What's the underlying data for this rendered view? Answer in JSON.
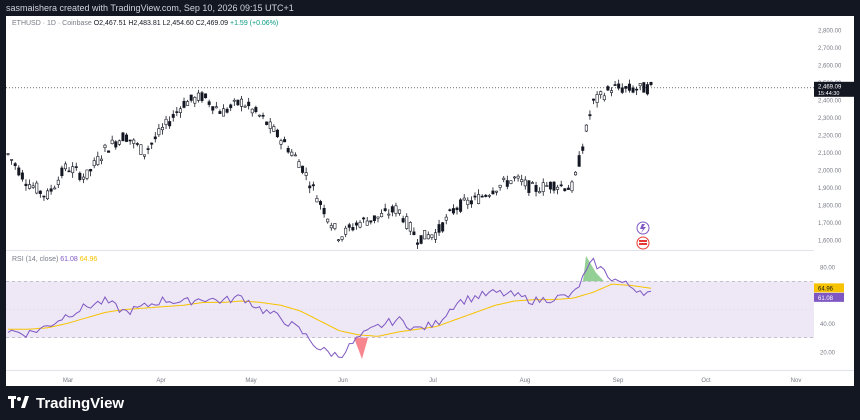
{
  "header": {
    "credit": "sasmaishera created with TradingView.com, Sep 10, 2026 09:15 UTC+1"
  },
  "legend": {
    "symbol": "ETHUSD · 1D · Coinbase",
    "open": "O2,467.51",
    "high": "H2,483.81",
    "low": "L2,454.60",
    "close": "C2,469.09",
    "change": "+1.59 (+0.06%)"
  },
  "rsi_legend": {
    "label": "RSI (14, close)",
    "rsi": "61.08",
    "ma": "64.96"
  },
  "last_price": {
    "value": "2,469.09",
    "countdown": "15:44:30"
  },
  "rsi_tags": {
    "ma": "64.96",
    "rsi": "61.08"
  },
  "footer": {
    "brand": "TradingView"
  },
  "colors": {
    "candle_up": "#131722",
    "candle_down": "#131722",
    "rsi_line": "#7e57c2",
    "rsi_ma": "#f7c300",
    "rsi_band": "#ede7f6"
  },
  "chart_data": [
    {
      "type": "candlestick",
      "title": "ETHUSD · 1D · Coinbase",
      "x_ticks": [
        "Mar",
        "Apr",
        "May",
        "Jun",
        "Jul",
        "Aug",
        "Sep",
        "Oct",
        "Nov"
      ],
      "y_ticks": [
        "1,600.00",
        "1,700.00",
        "1,800.00",
        "1,900.00",
        "2,000.00",
        "2,100.00",
        "2,200.00",
        "2,300.00",
        "2,400.00",
        "2,500.00",
        "2,600.00",
        "2,700.00",
        "2,800.00"
      ],
      "ylim": [
        1550,
        2850
      ],
      "series_points": [
        [
          "Feb 20",
          2090
        ],
        [
          "Feb 27",
          1930
        ],
        [
          "Mar 5",
          1850
        ],
        [
          "Mar 12",
          2020
        ],
        [
          "Mar 19",
          1960
        ],
        [
          "Mar 26",
          2120
        ],
        [
          "Apr 2",
          2200
        ],
        [
          "Apr 9",
          2100
        ],
        [
          "Apr 16",
          2240
        ],
        [
          "Apr 23",
          2380
        ],
        [
          "Apr 30",
          2420
        ],
        [
          "May 7",
          2330
        ],
        [
          "May 14",
          2390
        ],
        [
          "May 21",
          2300
        ],
        [
          "May 28",
          2180
        ],
        [
          "Jun 1",
          2040
        ],
        [
          "Jun 4",
          1820
        ],
        [
          "Jun 8",
          1620
        ],
        [
          "Jun 12",
          1700
        ],
        [
          "Jun 18",
          1730
        ],
        [
          "Jun 25",
          1780
        ],
        [
          "Jul 1",
          1610
        ],
        [
          "Jul 5",
          1640
        ],
        [
          "Jul 12",
          1790
        ],
        [
          "Jul 19",
          1830
        ],
        [
          "Jul 26",
          1900
        ],
        [
          "Aug 2",
          1950
        ],
        [
          "Aug 9",
          1890
        ],
        [
          "Aug 16",
          1920
        ],
        [
          "Aug 22",
          1900
        ],
        [
          "Aug 25",
          2380
        ],
        [
          "Sep 1",
          2470
        ],
        [
          "Sep 6",
          2460
        ],
        [
          "Sep 10",
          2469
        ]
      ]
    },
    {
      "type": "line",
      "title": "RSI (14, close)",
      "y_ticks": [
        "20.00",
        "40.00",
        "60.00",
        "80.00"
      ],
      "ylim": [
        10,
        90
      ],
      "bands": [
        30,
        70
      ],
      "series": [
        {
          "name": "RSI",
          "values": [
            35,
            33,
            38,
            46,
            52,
            56,
            48,
            52,
            57,
            55,
            58,
            56,
            59,
            50,
            44,
            35,
            22,
            17,
            30,
            38,
            43,
            36,
            40,
            55,
            59,
            62,
            60,
            56,
            58,
            60,
            84,
            72,
            66,
            61
          ]
        },
        {
          "name": "MA",
          "values": [
            36,
            36,
            37,
            40,
            44,
            48,
            50,
            51,
            52,
            53,
            55,
            55,
            56,
            55,
            53,
            49,
            42,
            35,
            32,
            31,
            34,
            36,
            38,
            43,
            48,
            53,
            56,
            57,
            57,
            58,
            62,
            68,
            67,
            65
          ]
        }
      ]
    }
  ]
}
